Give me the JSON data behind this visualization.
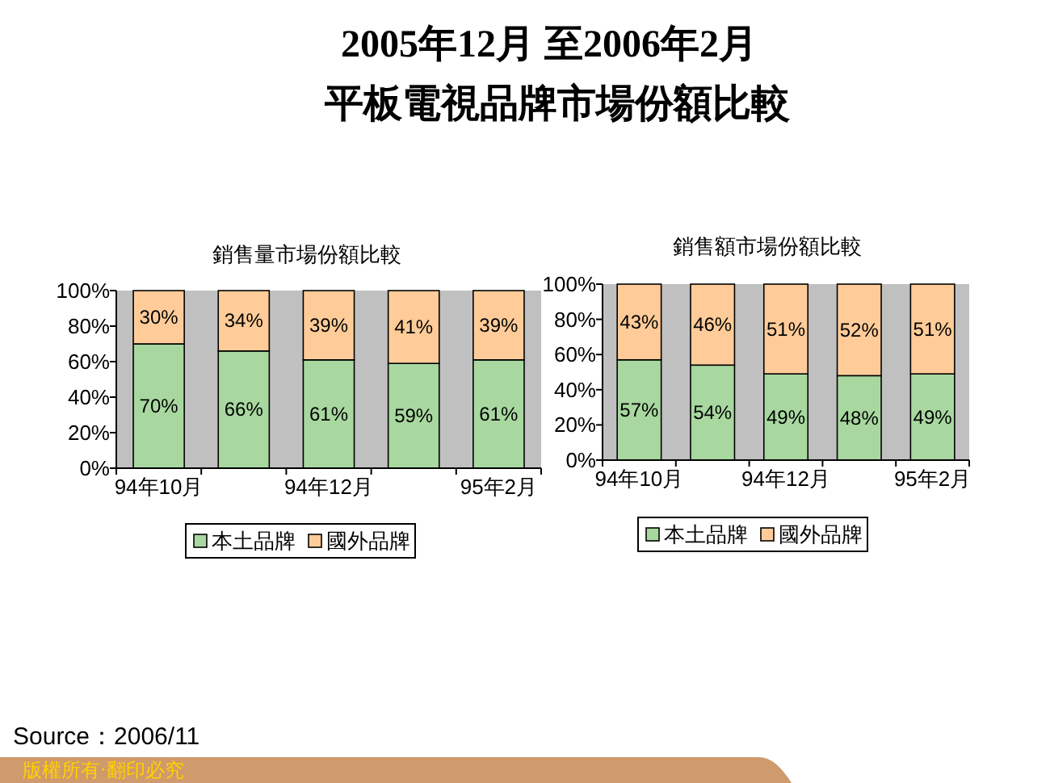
{
  "chart_data": [
    {
      "type": "bar",
      "title": "銷售量市場份額比較",
      "categories": [
        "94年10月",
        null,
        "94年12月",
        null,
        "95年2月"
      ],
      "stacked": true,
      "series": [
        {
          "name": "本土品牌",
          "color": "#a8d8a0",
          "values": [
            70,
            66,
            61,
            59,
            61
          ],
          "value_labels": [
            "70%",
            "66%",
            "61%",
            "59%",
            "61%"
          ]
        },
        {
          "name": "國外品牌",
          "color": "#ffcc99",
          "values": [
            30,
            34,
            39,
            41,
            39
          ],
          "value_labels": [
            "30%",
            "34%",
            "39%",
            "41%",
            "39%"
          ]
        }
      ],
      "ylim": [
        0,
        100
      ],
      "yticks": [
        {
          "value": 0,
          "label": "0%"
        },
        {
          "value": 20,
          "label": "20%"
        },
        {
          "value": 40,
          "label": "40%"
        },
        {
          "value": 60,
          "label": "60%"
        },
        {
          "value": 80,
          "label": "80%"
        },
        {
          "value": 100,
          "label": "100%"
        }
      ],
      "legend": "bottom",
      "annotations": [
        "2005年12月 至2006年2月",
        "平板電視品牌市場份額比較"
      ]
    },
    {
      "type": "bar",
      "title": "銷售額市場份額比較",
      "categories": [
        "94年10月",
        null,
        "94年12月",
        null,
        "95年2月"
      ],
      "stacked": true,
      "series": [
        {
          "name": "本土品牌",
          "color": "#a8d8a0",
          "values": [
            57,
            54,
            49,
            48,
            49
          ],
          "value_labels": [
            "57%",
            "54%",
            "49%",
            "48%",
            "49%"
          ]
        },
        {
          "name": "國外品牌",
          "color": "#ffcc99",
          "values": [
            43,
            46,
            51,
            52,
            51
          ],
          "value_labels": [
            "43%",
            "46%",
            "51%",
            "52%",
            "51%"
          ]
        }
      ],
      "ylim": [
        0,
        100
      ],
      "yticks": [
        {
          "value": 0,
          "label": "0%"
        },
        {
          "value": 20,
          "label": "20%"
        },
        {
          "value": 40,
          "label": "40%"
        },
        {
          "value": 60,
          "label": "60%"
        },
        {
          "value": 80,
          "label": "80%"
        },
        {
          "value": 100,
          "label": "100%"
        }
      ],
      "legend": "bottom",
      "annotations": [
        "Source：2006/11",
        "版權所有‧翻印必究"
      ]
    }
  ]
}
